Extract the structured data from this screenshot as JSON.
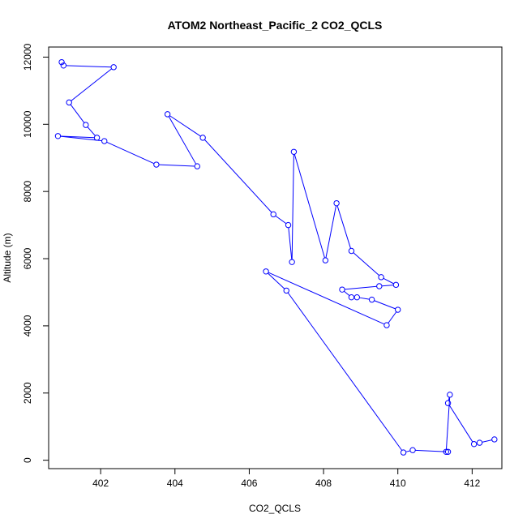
{
  "chart_data": {
    "type": "scatter",
    "title": "ATOM2 Northeast_Pacific_2 CO2_QCLS",
    "xlabel": "CO2_QCLS",
    "ylabel": "Altitude (m)",
    "xlim": [
      400.6,
      412.8
    ],
    "ylim": [
      -250,
      12300
    ],
    "xticks": [
      402,
      404,
      406,
      408,
      410,
      412
    ],
    "yticks": [
      0,
      2000,
      4000,
      6000,
      8000,
      10000,
      12000
    ],
    "grid": false,
    "legend": "none",
    "color": "#0000ff",
    "series": [
      {
        "x": [
          400.95,
          401.0,
          402.35,
          401.15,
          401.6,
          401.9,
          400.85,
          402.1,
          403.5,
          404.6,
          403.8,
          404.75,
          406.65,
          407.05,
          407.15,
          407.2,
          408.05,
          408.35,
          408.75,
          409.55,
          409.95,
          409.5,
          408.5,
          408.75,
          408.9,
          409.3,
          410.0,
          409.7,
          406.45,
          407.0,
          410.15,
          410.4,
          411.35,
          411.3,
          411.4,
          411.35,
          412.05,
          412.2,
          412.6
        ],
        "y": [
          11850,
          11750,
          11700,
          10650,
          9980,
          9600,
          9650,
          9500,
          8800,
          8750,
          10300,
          9600,
          7320,
          7000,
          5900,
          9180,
          5950,
          7650,
          6230,
          5450,
          5220,
          5180,
          5080,
          4850,
          4850,
          4780,
          4480,
          4020,
          5620,
          5050,
          230,
          300,
          250,
          250,
          1950,
          1700,
          480,
          520,
          620
        ]
      }
    ]
  }
}
